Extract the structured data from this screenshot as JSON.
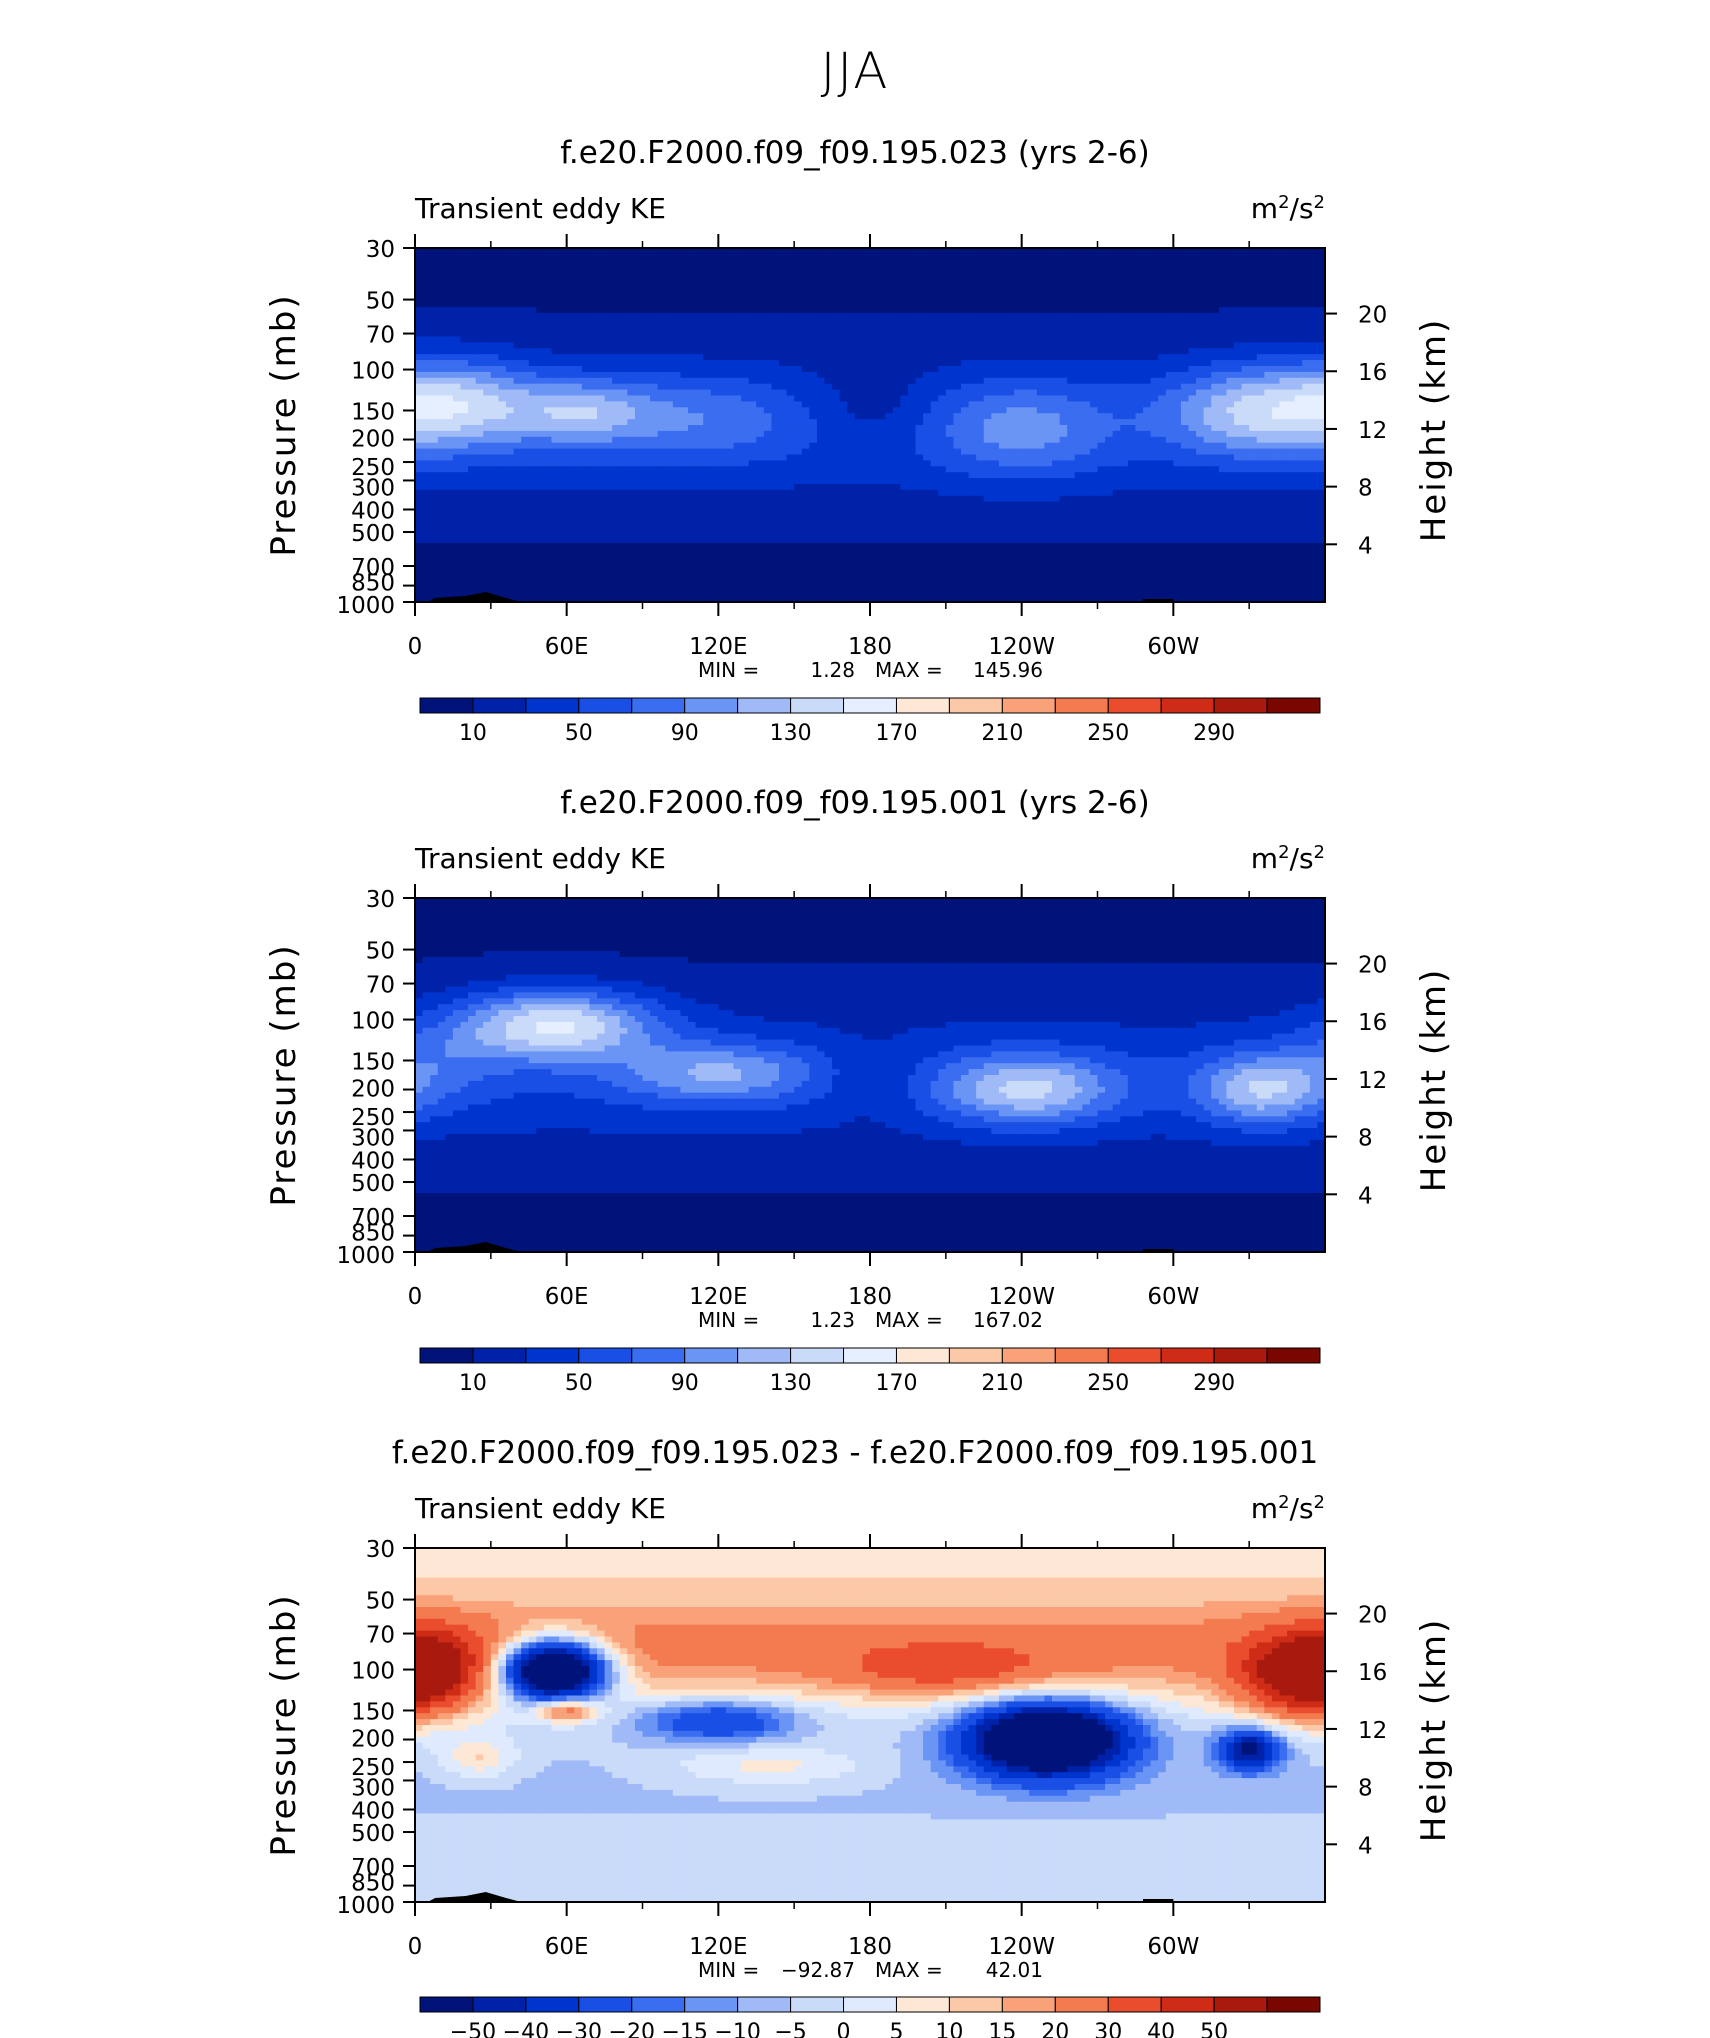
{
  "page": {
    "title": "JJA"
  },
  "colors": {
    "abs_scale": [
      "#00137a",
      "#0022a8",
      "#0034cf",
      "#1a4fe6",
      "#3b6df0",
      "#6a95f5",
      "#9fbaf7",
      "#c9dbf9",
      "#e5efff",
      "#fde8d6",
      "#fcc9a8",
      "#f9a27a",
      "#f47a50",
      "#ea4d2d",
      "#cf2c17",
      "#a81a0e",
      "#7a0600"
    ],
    "diff_scale": [
      "#00137a",
      "#0022a8",
      "#0034cf",
      "#1a4fe6",
      "#3b6df0",
      "#6a95f5",
      "#9fbaf7",
      "#c9dbf9",
      "#dfeaff",
      "#fde8d6",
      "#fcc9a8",
      "#f9a27a",
      "#f47a50",
      "#ea4d2d",
      "#cf2c17",
      "#a81a0e",
      "#7a0600"
    ]
  },
  "chart_data": [
    {
      "type": "heatmap",
      "title": "f.e20.F2000.f09_f09.195.023 (yrs 2-6)",
      "variable": "Transient eddy KE",
      "units": "m²/s²",
      "units_base": "m",
      "units_sup": "2",
      "units_mid": "/s",
      "units_sup2": "2",
      "xlabel": "",
      "ylabel": "Pressure (mb)",
      "y2label": "Height (km)",
      "x_ticks": [
        "0",
        "60E",
        "120E",
        "180",
        "120W",
        "60W"
      ],
      "y_ticks": [
        "30",
        "50",
        "70",
        "100",
        "150",
        "200",
        "250",
        "300",
        "400",
        "500",
        "700",
        "850",
        "1000"
      ],
      "y2_ticks": [
        "20",
        "16",
        "12",
        "8",
        "4"
      ],
      "min_label": "MIN =",
      "min_value": "1.28",
      "max_label": "MAX =",
      "max_value": "145.96",
      "colorbar_labels": [
        "10",
        "50",
        "90",
        "130",
        "170",
        "210",
        "250",
        "290"
      ],
      "colorbar_levels": [
        10,
        30,
        50,
        70,
        90,
        110,
        130,
        150,
        170,
        190,
        210,
        230,
        250,
        270,
        290
      ],
      "features": [
        {
          "lon": 10,
          "p": 150,
          "value": 135
        },
        {
          "lon": 65,
          "p": 150,
          "value": 112
        },
        {
          "lon": 300,
          "p": 150,
          "value": 125
        },
        {
          "lon": 240,
          "p": 200,
          "value": 95
        }
      ]
    },
    {
      "type": "heatmap",
      "title": "f.e20.F2000.f09_f09.195.001 (yrs 2-6)",
      "variable": "Transient eddy KE",
      "units": "m²/s²",
      "units_base": "m",
      "units_sup": "2",
      "units_mid": "/s",
      "units_sup2": "2",
      "xlabel": "",
      "ylabel": "Pressure (mb)",
      "y2label": "Height (km)",
      "x_ticks": [
        "0",
        "60E",
        "120E",
        "180",
        "120W",
        "60W"
      ],
      "y_ticks": [
        "30",
        "50",
        "70",
        "100",
        "150",
        "200",
        "250",
        "300",
        "400",
        "500",
        "700",
        "850",
        "1000"
      ],
      "y2_ticks": [
        "20",
        "16",
        "12",
        "8",
        "4"
      ],
      "min_label": "MIN =",
      "min_value": "1.23",
      "max_label": "MAX =",
      "max_value": "167.02",
      "colorbar_labels": [
        "10",
        "50",
        "90",
        "130",
        "170",
        "210",
        "250",
        "290"
      ],
      "colorbar_levels": [
        10,
        30,
        50,
        70,
        90,
        110,
        130,
        150,
        170,
        190,
        210,
        230,
        250,
        270,
        290
      ],
      "features": [
        {
          "lon": 55,
          "p": 100,
          "value": 160
        },
        {
          "lon": 120,
          "p": 180,
          "value": 125
        },
        {
          "lon": 240,
          "p": 200,
          "value": 135
        },
        {
          "lon": 335,
          "p": 200,
          "value": 125
        }
      ]
    },
    {
      "type": "heatmap",
      "title": "f.e20.F2000.f09_f09.195.023 - f.e20.F2000.f09_f09.195.001",
      "variable": "Transient eddy KE",
      "units": "m²/s²",
      "units_base": "m",
      "units_sup": "2",
      "units_mid": "/s",
      "units_sup2": "2",
      "xlabel": "",
      "ylabel": "Pressure (mb)",
      "y2label": "Height (km)",
      "x_ticks": [
        "0",
        "60E",
        "120E",
        "180",
        "120W",
        "60W"
      ],
      "y_ticks": [
        "30",
        "50",
        "70",
        "100",
        "150",
        "200",
        "250",
        "300",
        "400",
        "500",
        "700",
        "850",
        "1000"
      ],
      "y2_ticks": [
        "20",
        "16",
        "12",
        "8",
        "4"
      ],
      "min_label": "MIN =",
      "min_value": "−92.87",
      "max_label": "MAX =",
      "max_value": "42.01",
      "colorbar_labels": [
        "−50",
        "−40",
        "−30",
        "−20",
        "−15",
        "−10",
        "−5",
        "0",
        "5",
        "10",
        "15",
        "20",
        "30",
        "40",
        "50"
      ],
      "colorbar_levels": [
        -50,
        -40,
        -30,
        -20,
        -15,
        -10,
        -5,
        0,
        5,
        10,
        15,
        20,
        30,
        40,
        50
      ],
      "features": [
        {
          "lon": 55,
          "p": 100,
          "value": -92
        },
        {
          "lon": 250,
          "p": 200,
          "value": -85
        },
        {
          "lon": 330,
          "p": 220,
          "value": -45
        },
        {
          "lon": 5,
          "p": 100,
          "value": 38
        },
        {
          "lon": 350,
          "p": 120,
          "value": 42
        },
        {
          "lon": 210,
          "p": 100,
          "value": 25
        }
      ]
    }
  ]
}
